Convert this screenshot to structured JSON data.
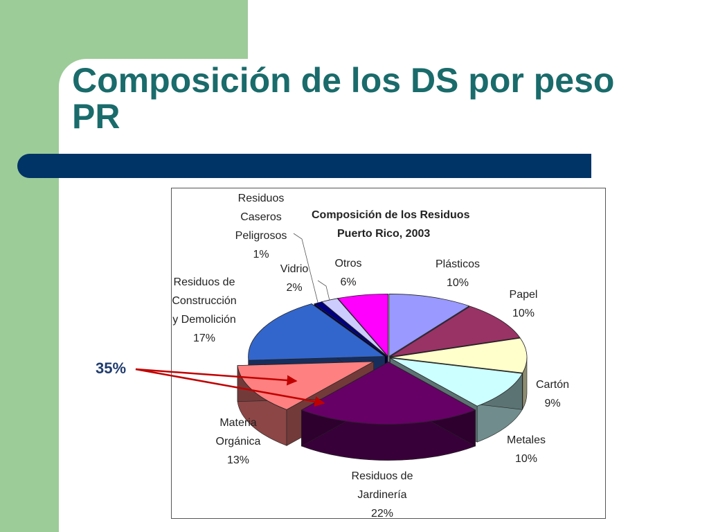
{
  "slide": {
    "title_line1": "Composición de los DS por peso",
    "title_line2": "PR"
  },
  "callout": {
    "text": "35%",
    "color": "#c00000"
  },
  "chart_data": {
    "type": "pie",
    "title": "Composición de los Residuos",
    "subtitle": "Puerto Rico, 2003",
    "slices": [
      {
        "label": [
          "Plásticos"
        ],
        "value": 10,
        "pct_label": "10%",
        "color": "#9999ff"
      },
      {
        "label": [
          "Papel"
        ],
        "value": 10,
        "pct_label": "10%",
        "color": "#993366"
      },
      {
        "label": [
          "Cartón"
        ],
        "value": 9,
        "pct_label": "9%",
        "color": "#ffffcc"
      },
      {
        "label": [
          "Metales"
        ],
        "value": 10,
        "pct_label": "10%",
        "color": "#ccffff"
      },
      {
        "label": [
          "Residuos de",
          "Jardinería"
        ],
        "value": 22,
        "pct_label": "22%",
        "color": "#660066"
      },
      {
        "label": [
          "Materia",
          "Orgánica"
        ],
        "value": 13,
        "pct_label": "13%",
        "color": "#ff8080"
      },
      {
        "label": [
          "Residuos de",
          "Construcción",
          "y Demolición"
        ],
        "value": 17,
        "pct_label": "17%",
        "color": "#3366cc"
      },
      {
        "label": [
          "Residuos",
          "Caseros",
          "Peligrosos"
        ],
        "value": 1,
        "pct_label": "1%",
        "color": "#000080"
      },
      {
        "label": [
          "Vidrio"
        ],
        "value": 2,
        "pct_label": "2%",
        "color": "#ccccff"
      },
      {
        "label": [
          "Otros"
        ],
        "value": 6,
        "pct_label": "6%",
        "color": "#ff00ff"
      }
    ]
  }
}
